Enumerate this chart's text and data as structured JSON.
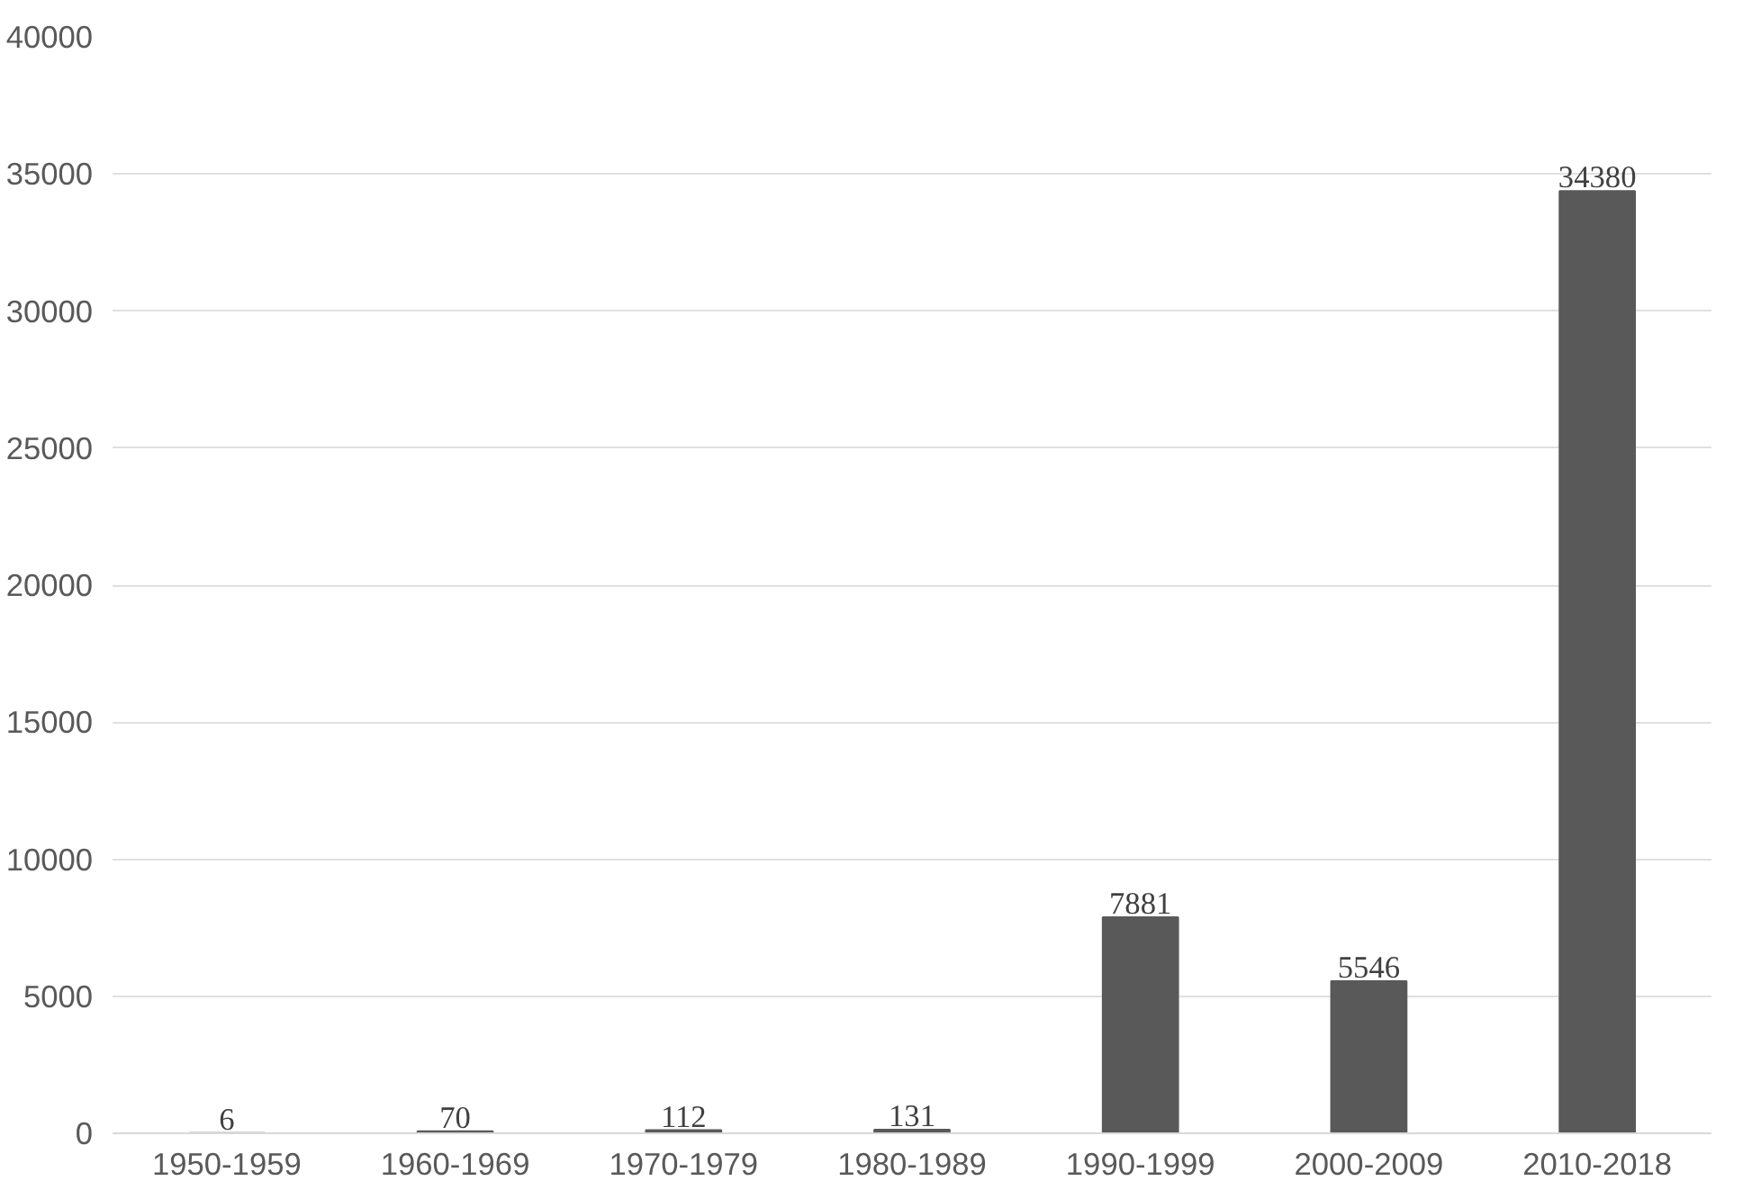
{
  "chart_data": {
    "type": "bar",
    "categories": [
      "1950-1959",
      "1960-1969",
      "1970-1979",
      "1980-1989",
      "1990-1999",
      "2000-2009",
      "2010-2018"
    ],
    "values": [
      6,
      70,
      112,
      131,
      7881,
      5546,
      34380
    ],
    "color": "#595959",
    "ylim": [
      0,
      40000
    ],
    "yticks": [
      0,
      5000,
      10000,
      15000,
      20000,
      25000,
      30000,
      35000,
      40000
    ],
    "grid": "y",
    "data_labels": true
  }
}
